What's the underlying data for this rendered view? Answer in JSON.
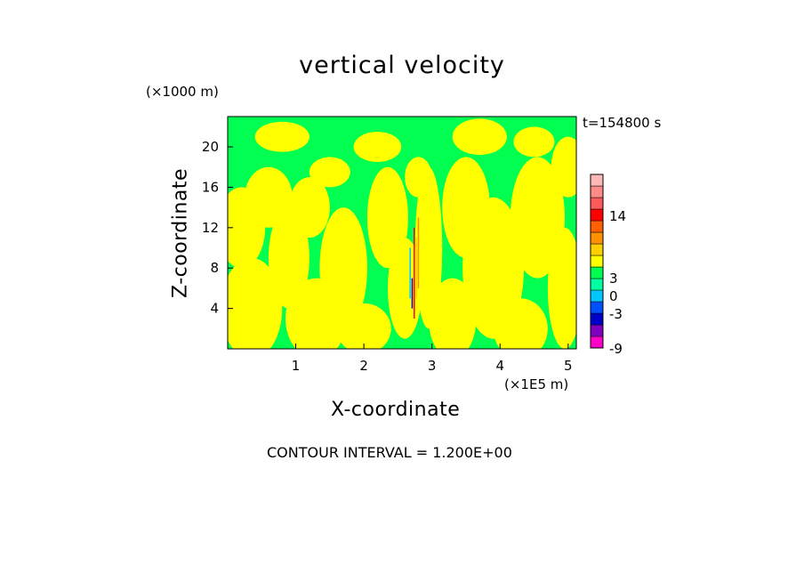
{
  "chart_data": {
    "type": "heatmap",
    "title": "vertical velocity",
    "xlabel": "X-coordinate",
    "ylabel": "Z-coordinate",
    "x_unit": "(×1E5 m)",
    "z_unit": "(×1000 m)",
    "time_label": "t=154800 s",
    "contour_interval_label": "CONTOUR INTERVAL = 1.200E+00",
    "xlim": [
      0,
      5.12
    ],
    "ylim": [
      0,
      23
    ],
    "xticks": [
      "1",
      "2",
      "3",
      "4",
      "5"
    ],
    "yticks": [
      "4",
      "8",
      "12",
      "16",
      "20"
    ],
    "colorbar": {
      "tick_labels": [
        "14",
        "3",
        "0",
        "-3",
        "-9"
      ],
      "colors": [
        "#ff00c8",
        "#8000c0",
        "#0000c8",
        "#0050ff",
        "#00c8ff",
        "#00ffa0",
        "#00ff50",
        "#ffff00",
        "#ffd000",
        "#ff9000",
        "#ff6000",
        "#ff0000",
        "#ff5a5a",
        "#ff8a8a",
        "#ffb8b8"
      ],
      "dominant_colors": [
        "#00ff50",
        "#ffff00"
      ]
    },
    "grid": false
  }
}
